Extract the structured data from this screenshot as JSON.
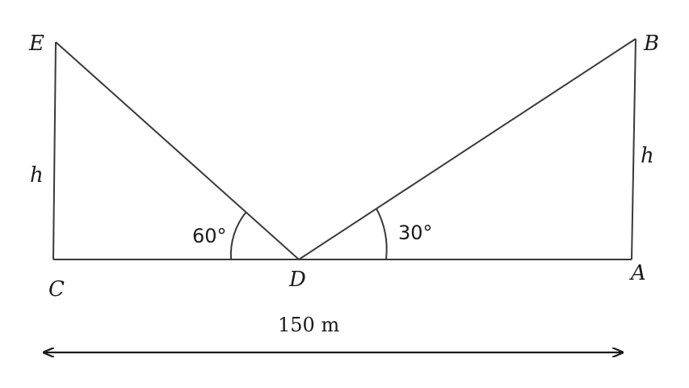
{
  "points": {
    "E": "E",
    "B": "B",
    "C": "C",
    "D": "D",
    "A": "A"
  },
  "sides": {
    "left_height": "h",
    "right_height": "h"
  },
  "angles": {
    "left": "60°",
    "right": "30°"
  },
  "distance": {
    "label": "150 m"
  }
}
